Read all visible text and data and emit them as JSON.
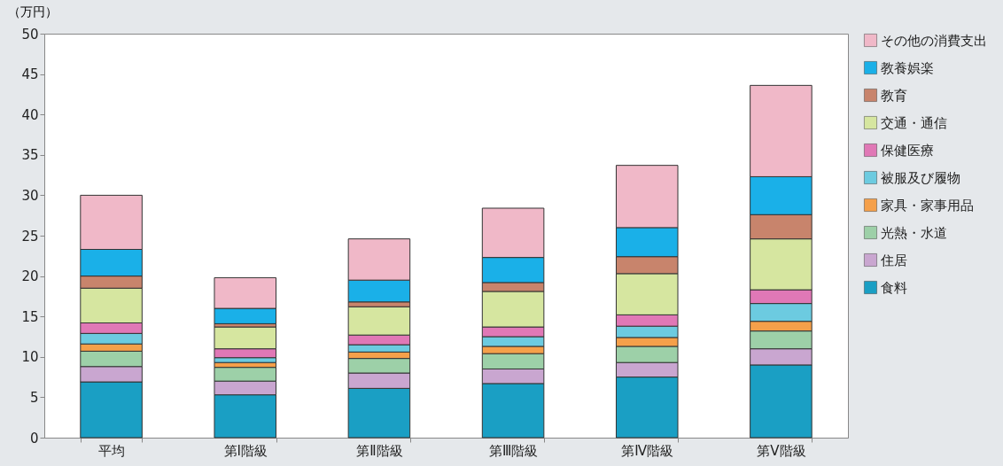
{
  "chart_data": {
    "type": "bar",
    "stacked": true,
    "ylabel": "（万円）",
    "categories": [
      "平均",
      "第Ⅰ階級",
      "第Ⅱ階級",
      "第Ⅲ階級",
      "第Ⅳ階級",
      "第Ⅴ階級"
    ],
    "series": [
      {
        "name": "食料",
        "color": "#1a9fc4",
        "values": [
          6.9,
          5.3,
          6.1,
          6.7,
          7.5,
          9.0
        ]
      },
      {
        "name": "住居",
        "color": "#c9a6d0",
        "values": [
          1.9,
          1.7,
          1.9,
          1.8,
          1.8,
          2.0
        ]
      },
      {
        "name": "光熱・水道",
        "color": "#9dd0a8",
        "values": [
          1.9,
          1.7,
          1.8,
          1.9,
          2.0,
          2.2
        ]
      },
      {
        "name": "家具・家事用品",
        "color": "#f5a04a",
        "values": [
          0.9,
          0.6,
          0.8,
          0.9,
          1.1,
          1.2
        ]
      },
      {
        "name": "被服及び履物",
        "color": "#6ccbe0",
        "values": [
          1.3,
          0.6,
          0.9,
          1.2,
          1.4,
          2.2
        ]
      },
      {
        "name": "保健医療",
        "color": "#e078b6",
        "values": [
          1.3,
          1.1,
          1.2,
          1.2,
          1.4,
          1.7
        ]
      },
      {
        "name": "交通・通信",
        "color": "#d6e6a0",
        "values": [
          4.3,
          2.7,
          3.5,
          4.4,
          5.1,
          6.3
        ]
      },
      {
        "name": "教育",
        "color": "#c8846c",
        "values": [
          1.5,
          0.4,
          0.6,
          1.1,
          2.1,
          3.0
        ]
      },
      {
        "name": "教養娯楽",
        "color": "#1ab0e8",
        "values": [
          3.3,
          1.9,
          2.7,
          3.1,
          3.6,
          4.7
        ]
      },
      {
        "name": "その他の消費支出",
        "color": "#f0b8c8",
        "values": [
          6.7,
          3.8,
          5.1,
          6.1,
          7.7,
          11.3
        ]
      }
    ],
    "ylim": [
      0,
      50
    ],
    "yticks": [
      0,
      5,
      10,
      15,
      20,
      25,
      30,
      35,
      40,
      45,
      50
    ],
    "grid": false,
    "legend": "right"
  }
}
